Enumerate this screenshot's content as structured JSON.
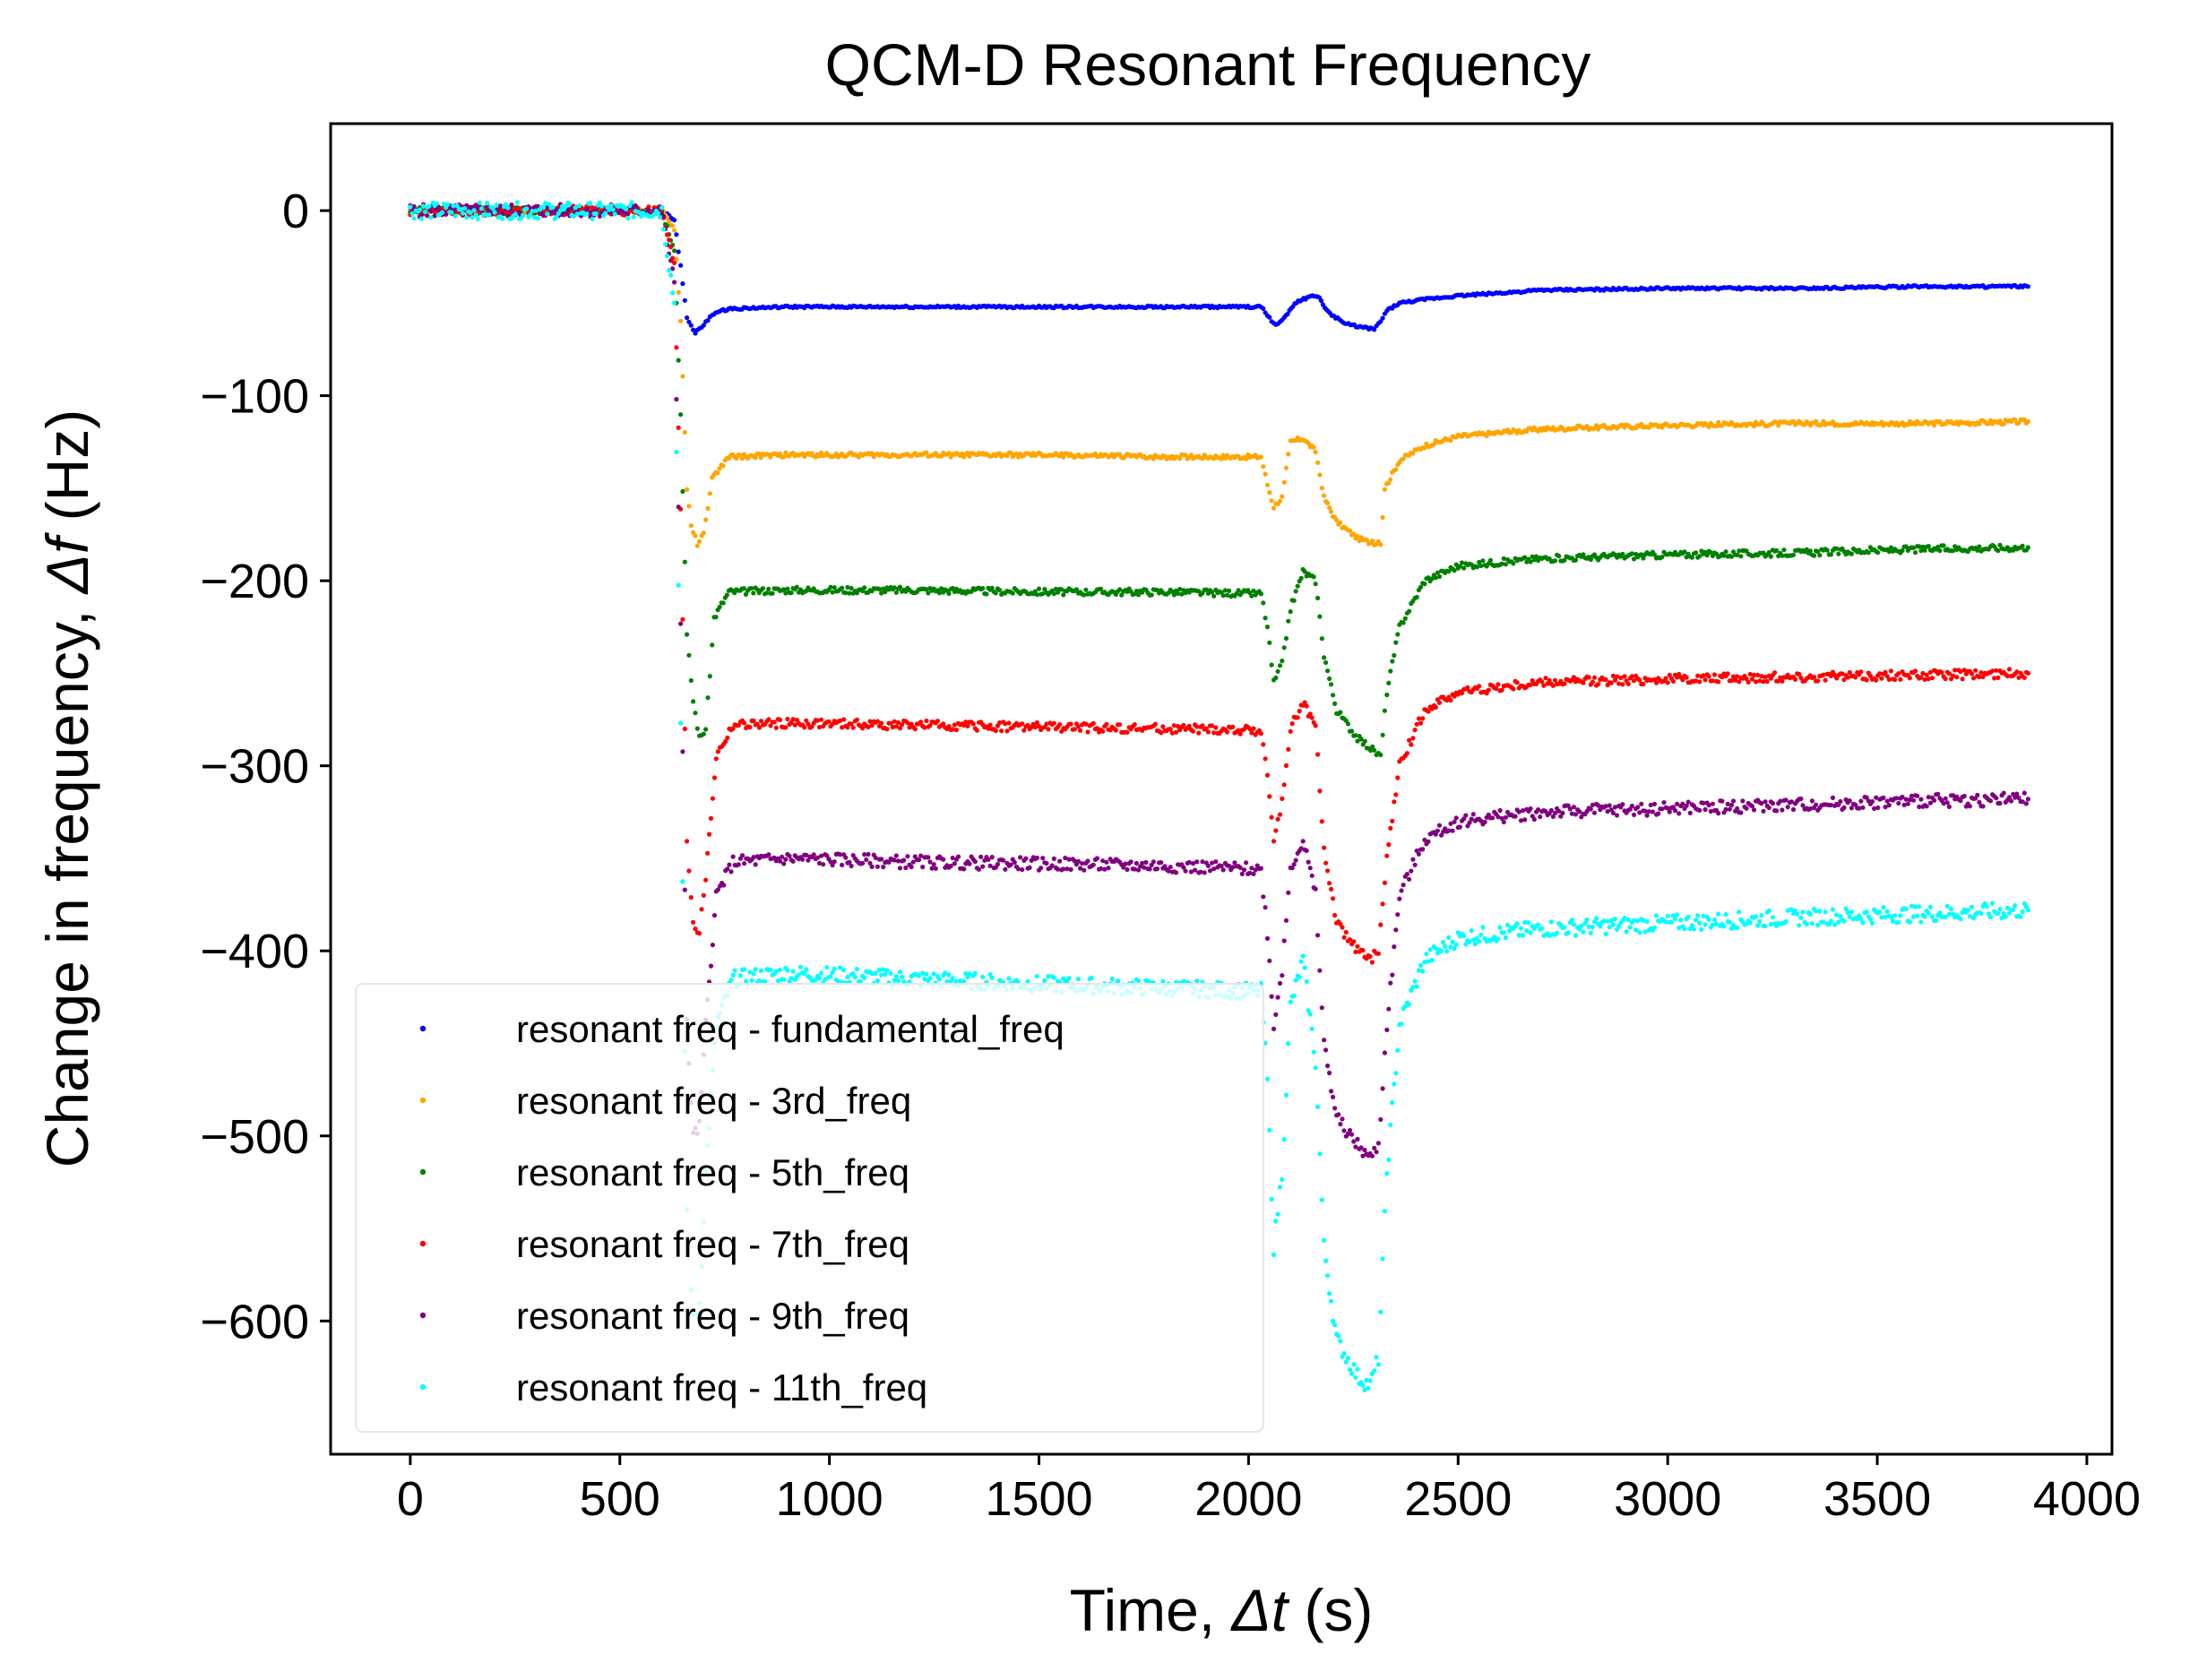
{
  "chart_data": {
    "type": "scatter",
    "title": "QCM-D Resonant Frequency",
    "xlabel_prefix": "Time, ",
    "xlabel_symbol": "Δt",
    "xlabel_suffix": " (s)",
    "ylabel_prefix": "Change in frequency, ",
    "ylabel_symbol": "Δf",
    "ylabel_suffix": " (Hz)",
    "xlim": [
      -190,
      4060
    ],
    "ylim": [
      -672,
      47
    ],
    "xticks": [
      0,
      500,
      1000,
      1500,
      2000,
      2500,
      3000,
      3500,
      4000
    ],
    "yticks": [
      0,
      -100,
      -200,
      -300,
      -400,
      -500,
      -600
    ],
    "xtick_labels": [
      "0",
      "500",
      "1000",
      "1500",
      "2000",
      "2500",
      "3000",
      "3500",
      "4000"
    ],
    "ytick_labels": [
      "0",
      "−100",
      "−200",
      "−300",
      "−400",
      "−500",
      "−600"
    ],
    "grid": false,
    "legend_position": "lower-left",
    "marker": "small dots",
    "series": [
      {
        "name": "resonant freq - fundamental_freq",
        "color": "#0000ff",
        "x": [
          0,
          300,
          600,
          630,
          645,
          660,
          680,
          700,
          720,
          760,
          900,
          1200,
          1500,
          1800,
          2030,
          2050,
          2065,
          2085,
          2110,
          2140,
          2165,
          2190,
          2230,
          2270,
          2300,
          2315,
          2330,
          2360,
          2420,
          2500,
          2700,
          3000,
          3300,
          3600,
          3860
        ],
        "y": [
          0,
          0,
          0,
          -5,
          -30,
          -58,
          -66,
          -62,
          -56,
          -53,
          -52,
          -52,
          -52,
          -52,
          -52,
          -58,
          -62,
          -58,
          -50,
          -47,
          -46,
          -55,
          -61,
          -63,
          -64,
          -60,
          -54,
          -50,
          -48,
          -46,
          -43,
          -42,
          -42,
          -41,
          -41
        ]
      },
      {
        "name": "resonant freq - 3rd_freq",
        "color": "#ffa500",
        "x": [
          0,
          300,
          600,
          630,
          645,
          660,
          670,
          685,
          700,
          720,
          760,
          900,
          1200,
          1500,
          1800,
          2030,
          2045,
          2060,
          2080,
          2100,
          2130,
          2160,
          2180,
          2210,
          2260,
          2300,
          2315,
          2325,
          2360,
          2420,
          2500,
          2700,
          3000,
          3300,
          3600,
          3860
        ],
        "y": [
          0,
          0,
          0,
          -10,
          -60,
          -150,
          -170,
          -180,
          -175,
          -145,
          -133,
          -132,
          -132,
          -132,
          -133,
          -133,
          -148,
          -160,
          -155,
          -125,
          -123,
          -130,
          -155,
          -168,
          -177,
          -180,
          -180,
          -150,
          -135,
          -127,
          -122,
          -118,
          -116,
          -115,
          -115,
          -114
        ]
      },
      {
        "name": "resonant freq - 5th_freq",
        "color": "#008000",
        "x": [
          0,
          300,
          600,
          630,
          645,
          660,
          675,
          690,
          705,
          725,
          760,
          900,
          1200,
          1500,
          1800,
          2030,
          2045,
          2060,
          2080,
          2100,
          2130,
          2160,
          2180,
          2210,
          2260,
          2300,
          2315,
          2330,
          2360,
          2420,
          2500,
          2700,
          3000,
          3300,
          3600,
          3860
        ],
        "y": [
          0,
          0,
          0,
          -20,
          -110,
          -230,
          -265,
          -285,
          -280,
          -220,
          -206,
          -205,
          -205,
          -206,
          -206,
          -207,
          -225,
          -255,
          -245,
          -215,
          -195,
          -200,
          -240,
          -270,
          -285,
          -292,
          -295,
          -260,
          -225,
          -200,
          -192,
          -188,
          -186,
          -185,
          -183,
          -182
        ]
      },
      {
        "name": "resonant freq - 7th_freq",
        "color": "#ff0000",
        "x": [
          0,
          300,
          600,
          630,
          645,
          660,
          675,
          690,
          705,
          730,
          770,
          900,
          1200,
          1500,
          1800,
          2030,
          2045,
          2060,
          2080,
          2100,
          2130,
          2160,
          2180,
          2210,
          2260,
          2290,
          2310,
          2330,
          2360,
          2420,
          2500,
          2700,
          3000,
          3300,
          3600,
          3860
        ],
        "y": [
          0,
          0,
          0,
          -30,
          -160,
          -340,
          -385,
          -390,
          -360,
          -295,
          -278,
          -277,
          -278,
          -279,
          -280,
          -281,
          -305,
          -340,
          -320,
          -280,
          -265,
          -280,
          -345,
          -385,
          -400,
          -405,
          -400,
          -350,
          -300,
          -270,
          -260,
          -255,
          -253,
          -252,
          -251,
          -250
        ]
      },
      {
        "name": "resonant freq - 9th_freq",
        "color": "#800080",
        "x": [
          0,
          300,
          600,
          630,
          645,
          660,
          675,
          690,
          705,
          730,
          770,
          900,
          1200,
          1500,
          1800,
          2030,
          2045,
          2060,
          2080,
          2100,
          2130,
          2160,
          2180,
          2210,
          2260,
          2290,
          2310,
          2330,
          2360,
          2420,
          2500,
          2700,
          3000,
          3300,
          3600,
          3860
        ],
        "y": [
          0,
          0,
          0,
          -40,
          -220,
          -440,
          -500,
          -495,
          -440,
          -370,
          -352,
          -350,
          -352,
          -353,
          -354,
          -356,
          -390,
          -440,
          -410,
          -355,
          -340,
          -370,
          -450,
          -490,
          -505,
          -512,
          -505,
          -440,
          -370,
          -340,
          -330,
          -325,
          -323,
          -321,
          -319,
          -318
        ]
      },
      {
        "name": "resonant freq - 11th_freq",
        "color": "#00ffff",
        "x": [
          0,
          300,
          600,
          630,
          645,
          660,
          675,
          690,
          705,
          730,
          770,
          900,
          1200,
          1500,
          1800,
          2030,
          2045,
          2060,
          2080,
          2100,
          2130,
          2160,
          2180,
          2210,
          2260,
          2290,
          2310,
          2330,
          2360,
          2420,
          2500,
          2700,
          3000,
          3300,
          3600,
          3860
        ],
        "y": [
          0,
          0,
          0,
          -50,
          -280,
          -540,
          -600,
          -590,
          -520,
          -440,
          -415,
          -412,
          -415,
          -418,
          -420,
          -422,
          -470,
          -560,
          -520,
          -430,
          -405,
          -460,
          -560,
          -610,
          -630,
          -635,
          -620,
          -520,
          -440,
          -405,
          -393,
          -388,
          -385,
          -382,
          -380,
          -378
        ]
      }
    ]
  }
}
